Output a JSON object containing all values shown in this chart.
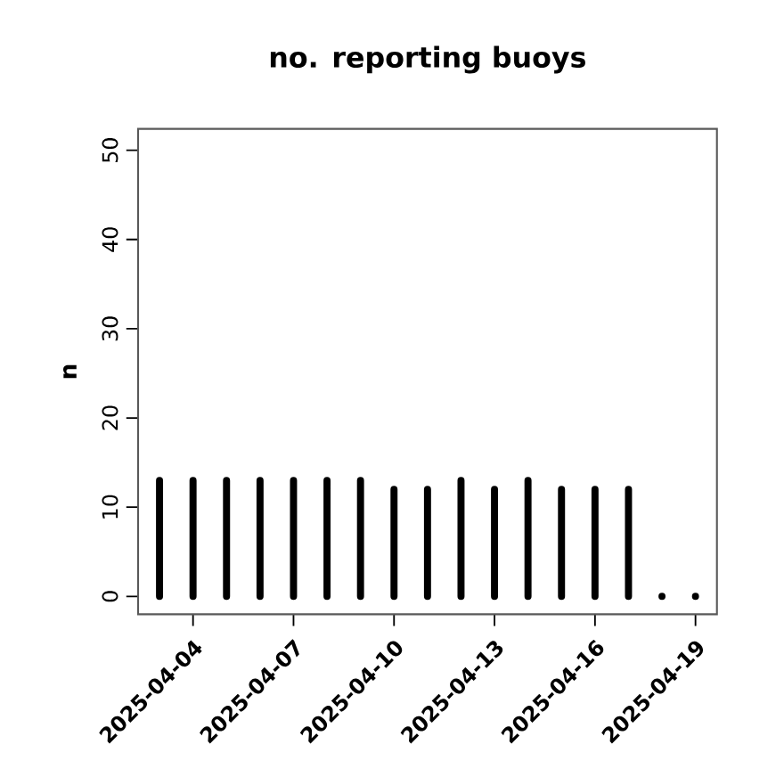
{
  "chart_data": {
    "type": "bar",
    "title": "no. reporting buoys",
    "ylabel": "n",
    "x": [
      "2025-04-03",
      "2025-04-04",
      "2025-04-05",
      "2025-04-06",
      "2025-04-07",
      "2025-04-08",
      "2025-04-09",
      "2025-04-10",
      "2025-04-11",
      "2025-04-12",
      "2025-04-13",
      "2025-04-14",
      "2025-04-15",
      "2025-04-16",
      "2025-04-17",
      "2025-04-18",
      "2025-04-19"
    ],
    "values": [
      13,
      13,
      13,
      13,
      13,
      13,
      13,
      12,
      12,
      13,
      12,
      13,
      12,
      12,
      12,
      0,
      0
    ],
    "color": "#000000",
    "xlim": [
      "2025-04-02T08:38",
      "2025-04-19T15:22"
    ],
    "xticks": [
      {
        "value": "2025-04-04",
        "label": "2025-04-04"
      },
      {
        "value": "2025-04-07",
        "label": "2025-04-07"
      },
      {
        "value": "2025-04-10",
        "label": "2025-04-10"
      },
      {
        "value": "2025-04-13",
        "label": "2025-04-13"
      },
      {
        "value": "2025-04-16",
        "label": "2025-04-16"
      },
      {
        "value": "2025-04-19",
        "label": "2025-04-19"
      }
    ],
    "ylim": [
      -2,
      52.4
    ],
    "yticks": [
      0,
      10,
      20,
      30,
      40,
      50
    ]
  }
}
